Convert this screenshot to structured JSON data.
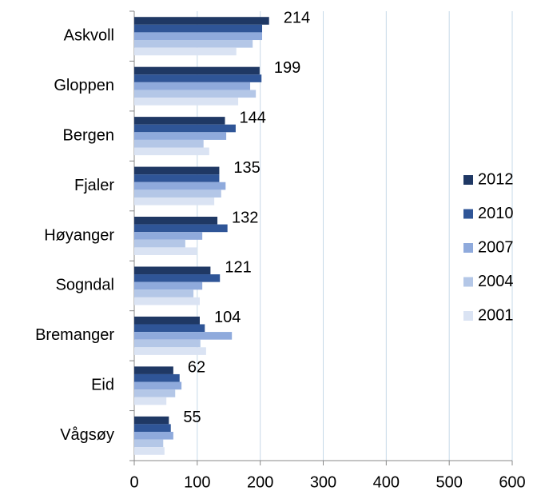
{
  "chart_data": {
    "type": "hbar",
    "categories": [
      "Askvoll",
      "Gloppen",
      "Bergen",
      "Fjaler",
      "Høyanger",
      "Sogndal",
      "Bremanger",
      "Eid",
      "Vågsøy"
    ],
    "series": [
      {
        "name": "2012",
        "color": "#1f3864",
        "show_labels": true,
        "values": [
          214,
          199,
          144,
          135,
          132,
          121,
          104,
          62,
          55
        ]
      },
      {
        "name": "2010",
        "color": "#2f5597",
        "values": [
          203,
          202,
          161,
          135,
          148,
          136,
          112,
          72,
          58
        ]
      },
      {
        "name": "2007",
        "color": "#8faadc",
        "values": [
          203,
          184,
          146,
          145,
          108,
          108,
          155,
          75,
          62
        ]
      },
      {
        "name": "2004",
        "color": "#b4c7e7",
        "values": [
          188,
          193,
          110,
          138,
          81,
          94,
          105,
          65,
          46
        ]
      },
      {
        "name": "2001",
        "color": "#dae3f3",
        "values": [
          162,
          165,
          119,
          127,
          99,
          104,
          114,
          51,
          48
        ]
      }
    ],
    "xlim": [
      0,
      600
    ],
    "xticks": [
      0,
      100,
      200,
      300,
      400,
      500,
      600
    ],
    "grid": true,
    "legend": "right"
  }
}
